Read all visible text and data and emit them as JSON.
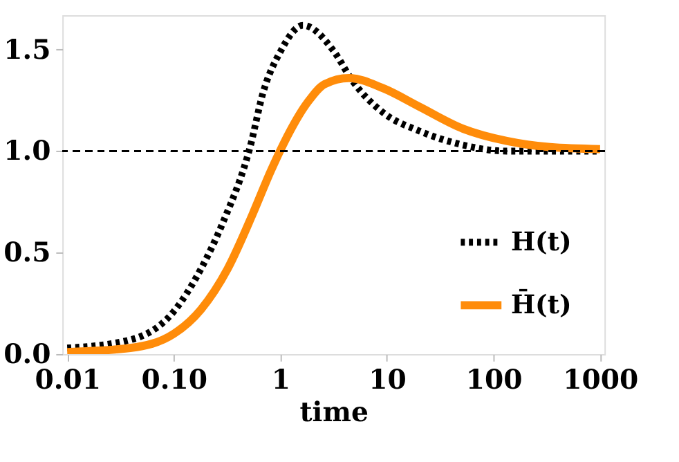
{
  "chart_data": {
    "type": "line",
    "xlabel": "time",
    "log": "x",
    "xlim": [
      0.009,
      1100
    ],
    "ylim": [
      0,
      1.67
    ],
    "xticks": [
      0.01,
      {
        "value": 0.1,
        "label": "0.10"
      },
      1,
      10,
      100,
      1000
    ],
    "yticks": [
      {
        "value": 0,
        "label": "0.0"
      },
      0.5,
      {
        "value": 1,
        "label": "1.0"
      },
      1.5
    ],
    "grid": false,
    "legend": "bottom right",
    "marker": "none",
    "ref_lines": [
      {
        "axis": "y",
        "value": 1,
        "color": "#000000",
        "line_style": "dashed"
      }
    ],
    "series": [
      {
        "name": "H(t)",
        "color": "#000000",
        "line_style": "dotted",
        "x": [
          0.01,
          0.039,
          0.1,
          0.18,
          0.29,
          0.52,
          0.69,
          1.0,
          1.63,
          3.2,
          4.7,
          9.2,
          20,
          52,
          133,
          1000
        ],
        "values": [
          0.03,
          0.07,
          0.21,
          0.42,
          0.65,
          1.02,
          1.29,
          1.49,
          1.62,
          1.49,
          1.35,
          1.19,
          1.1,
          1.03,
          1.0,
          1.0
        ]
      },
      {
        "name": "H̄(t)",
        "color": "#ff8c0a",
        "line_style": "solid",
        "x": [
          0.01,
          0.039,
          0.1,
          0.18,
          0.32,
          0.55,
          0.81,
          1.08,
          1.8,
          2.6,
          4.4,
          9.2,
          20,
          52,
          133,
          340,
          1000
        ],
        "values": [
          0.01,
          0.03,
          0.1,
          0.22,
          0.42,
          0.69,
          0.9,
          1.04,
          1.24,
          1.33,
          1.36,
          1.31,
          1.22,
          1.11,
          1.05,
          1.02,
          1.01
        ]
      }
    ]
  }
}
